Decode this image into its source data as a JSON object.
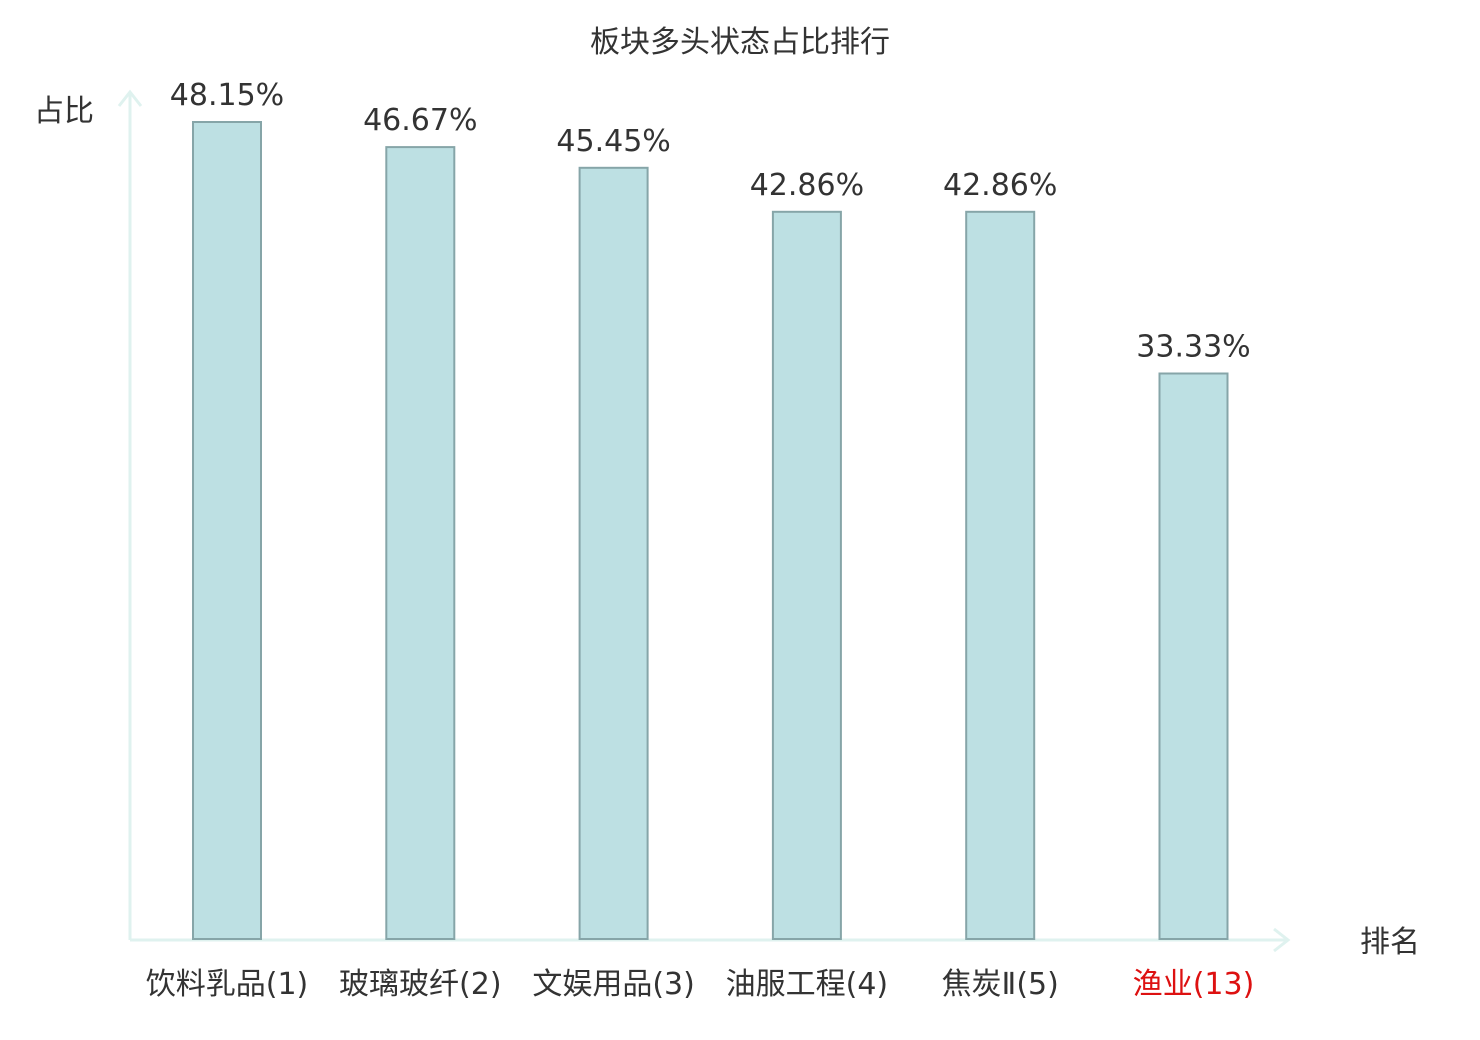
{
  "chart_data": {
    "type": "bar",
    "title": "板块多头状态占比排行",
    "xlabel": "排名",
    "ylabel": "占比",
    "categories": [
      "饮料乳品(1)",
      "玻璃玻纤(2)",
      "文娱用品(3)",
      "油服工程(4)",
      "焦炭Ⅱ(5)",
      "渔业(13)"
    ],
    "values": [
      48.15,
      46.67,
      45.45,
      42.86,
      42.86,
      33.33
    ],
    "value_labels": [
      "48.15%",
      "46.67%",
      "45.45%",
      "42.86%",
      "42.86%",
      "33.33%"
    ],
    "highlight_index": 5,
    "ylim": [
      0,
      50
    ],
    "grid": false,
    "legend": "none",
    "colors": {
      "bar_fill": "#bde0e3",
      "bar_stroke": "#86a5a8",
      "axis": "#dff2ef",
      "text": "#333333",
      "highlight_text": "#dd1111"
    }
  }
}
